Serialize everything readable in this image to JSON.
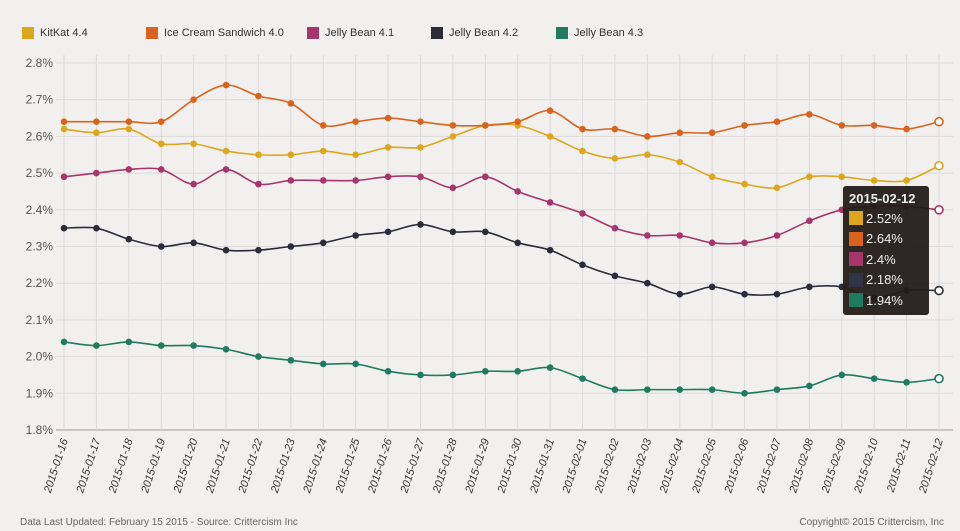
{
  "chart_data": {
    "type": "line",
    "title": "",
    "xlabel": "",
    "ylabel": "",
    "ylim": [
      1.8,
      2.8
    ],
    "y_ticks": [
      "1.8%",
      "1.9%",
      "2.0%",
      "2.1%",
      "2.2%",
      "2.3%",
      "2.4%",
      "2.5%",
      "2.6%",
      "2.7%",
      "2.8%"
    ],
    "grid": true,
    "legend_position": "top",
    "x": [
      "2015-01-16",
      "2015-01-17",
      "2015-01-18",
      "2015-01-19",
      "2015-01-20",
      "2015-01-21",
      "2015-01-22",
      "2015-01-23",
      "2015-01-24",
      "2015-01-25",
      "2015-01-26",
      "2015-01-27",
      "2015-01-28",
      "2015-01-29",
      "2015-01-30",
      "2015-01-31",
      "2015-02-01",
      "2015-02-02",
      "2015-02-03",
      "2015-02-04",
      "2015-02-05",
      "2015-02-06",
      "2015-02-07",
      "2015-02-08",
      "2015-02-09",
      "2015-02-10",
      "2015-02-11",
      "2015-02-12"
    ],
    "series": [
      {
        "name": "KitKat 4.4",
        "color": "#dca61e",
        "values": [
          2.62,
          2.61,
          2.62,
          2.58,
          2.58,
          2.56,
          2.55,
          2.55,
          2.56,
          2.55,
          2.57,
          2.57,
          2.6,
          2.63,
          2.63,
          2.6,
          2.56,
          2.54,
          2.55,
          2.53,
          2.49,
          2.47,
          2.46,
          2.49,
          2.49,
          2.48,
          2.48,
          2.52
        ]
      },
      {
        "name": "Ice Cream Sandwich 4.0",
        "color": "#d9631c",
        "values": [
          2.64,
          2.64,
          2.64,
          2.64,
          2.7,
          2.74,
          2.71,
          2.69,
          2.63,
          2.64,
          2.65,
          2.64,
          2.63,
          2.63,
          2.64,
          2.67,
          2.62,
          2.62,
          2.6,
          2.61,
          2.61,
          2.63,
          2.64,
          2.66,
          2.63,
          2.63,
          2.62,
          2.64
        ]
      },
      {
        "name": "Jelly Bean 4.1",
        "color": "#a7356a",
        "values": [
          2.49,
          2.5,
          2.51,
          2.51,
          2.47,
          2.51,
          2.47,
          2.48,
          2.48,
          2.48,
          2.49,
          2.49,
          2.46,
          2.49,
          2.45,
          2.42,
          2.39,
          2.35,
          2.33,
          2.33,
          2.31,
          2.31,
          2.33,
          2.37,
          2.4,
          2.41,
          2.41,
          2.4
        ]
      },
      {
        "name": "Jelly Bean 4.2",
        "color": "#2a2d38",
        "values": [
          2.35,
          2.35,
          2.32,
          2.3,
          2.31,
          2.29,
          2.29,
          2.3,
          2.31,
          2.33,
          2.34,
          2.36,
          2.34,
          2.34,
          2.31,
          2.29,
          2.25,
          2.22,
          2.2,
          2.17,
          2.19,
          2.17,
          2.17,
          2.19,
          2.19,
          2.16,
          2.18,
          2.18
        ]
      },
      {
        "name": "Jelly Bean 4.3",
        "color": "#1f7a60",
        "values": [
          2.04,
          2.03,
          2.04,
          2.03,
          2.03,
          2.02,
          2.0,
          1.99,
          1.98,
          1.98,
          1.96,
          1.95,
          1.95,
          1.96,
          1.96,
          1.97,
          1.94,
          1.91,
          1.91,
          1.91,
          1.91,
          1.9,
          1.91,
          1.92,
          1.95,
          1.94,
          1.93,
          1.94
        ]
      }
    ],
    "tooltip": {
      "date": "2015-02-12",
      "values": [
        "2.52%",
        "2.64%",
        "2.4%",
        "2.18%",
        "1.94%"
      ]
    }
  },
  "footer": {
    "left": "Data Last Updated: February 15 2015 - Source: Crittercism Inc",
    "right": "Copyright© 2015 Crittercism, Inc"
  }
}
